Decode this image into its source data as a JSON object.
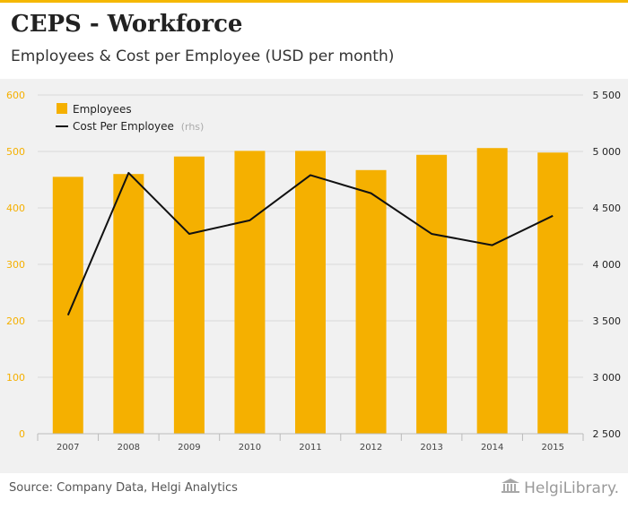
{
  "header": {
    "title": "CEPS - Workforce",
    "subtitle": "Employees & Cost per Employee (USD per month)"
  },
  "colors": {
    "bar": "#f5b000",
    "line": "#111111",
    "axis_text": "#f5b000",
    "right_axis_text": "#222222",
    "grid": "#d9d9d9"
  },
  "chart_data": {
    "type": "bar",
    "categories": [
      "2007",
      "2008",
      "2009",
      "2010",
      "2011",
      "2012",
      "2013",
      "2014",
      "2015"
    ],
    "series": [
      {
        "name": "Employees",
        "type": "bar",
        "axis": "left",
        "values": [
          455,
          460,
          491,
          501,
          501,
          467,
          494,
          506,
          498
        ]
      },
      {
        "name": "Cost Per Employee",
        "name_suffix": "(rhs)",
        "type": "line",
        "axis": "right",
        "values": [
          3550,
          4810,
          4270,
          4390,
          4790,
          4630,
          4270,
          4170,
          4430
        ]
      }
    ],
    "y_left": {
      "min": 0,
      "max": 600,
      "ticks": [
        "0",
        "100",
        "200",
        "300",
        "400",
        "500",
        "600"
      ]
    },
    "y_right": {
      "min": 2500,
      "max": 5500,
      "ticks": [
        "2 500",
        "3 000",
        "3 500",
        "4 000",
        "4 500",
        "5 000",
        "5 500"
      ]
    },
    "legend_position": "top-left",
    "grid": true
  },
  "footer": {
    "source": "Source: Company Data, Helgi Analytics",
    "logo_text": "HelgiLibrary."
  }
}
